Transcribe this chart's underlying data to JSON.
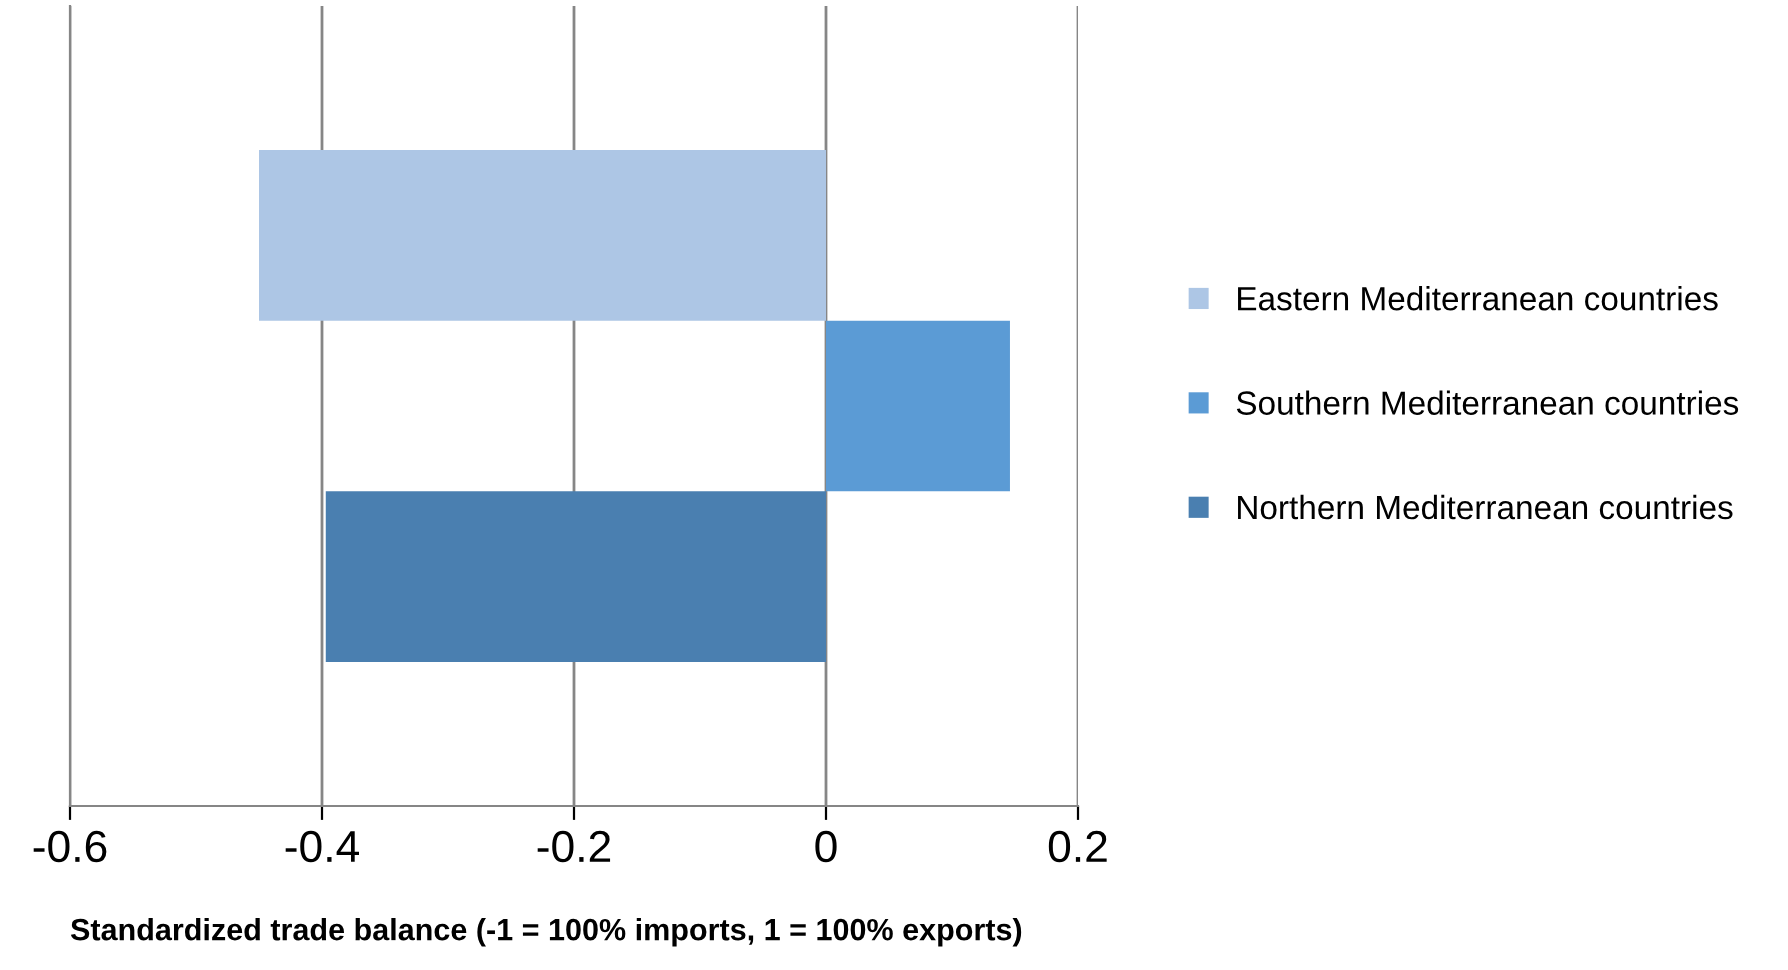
{
  "chart_data": {
    "type": "bar",
    "orientation": "horizontal",
    "categories": [
      null
    ],
    "series": [
      {
        "name": "Eastern Mediterranean countries",
        "color": "#adc6e5",
        "values": [
          -0.45
        ]
      },
      {
        "name": "Southern Mediterranean countries",
        "color": "#5b9bd5",
        "values": [
          0.146
        ]
      },
      {
        "name": "Northern Mediterranean countries",
        "color": "#4a7fb0",
        "values": [
          -0.397
        ]
      }
    ],
    "xlim": [
      -0.6,
      0.2
    ],
    "xticks": [
      -0.6,
      -0.4,
      -0.2,
      0,
      0.2
    ],
    "xlabel": "Standardized trade balance (-1 = 100% imports, 1 = 100% exports)",
    "grid": "x",
    "legend": "right",
    "tick_labels": "x"
  }
}
